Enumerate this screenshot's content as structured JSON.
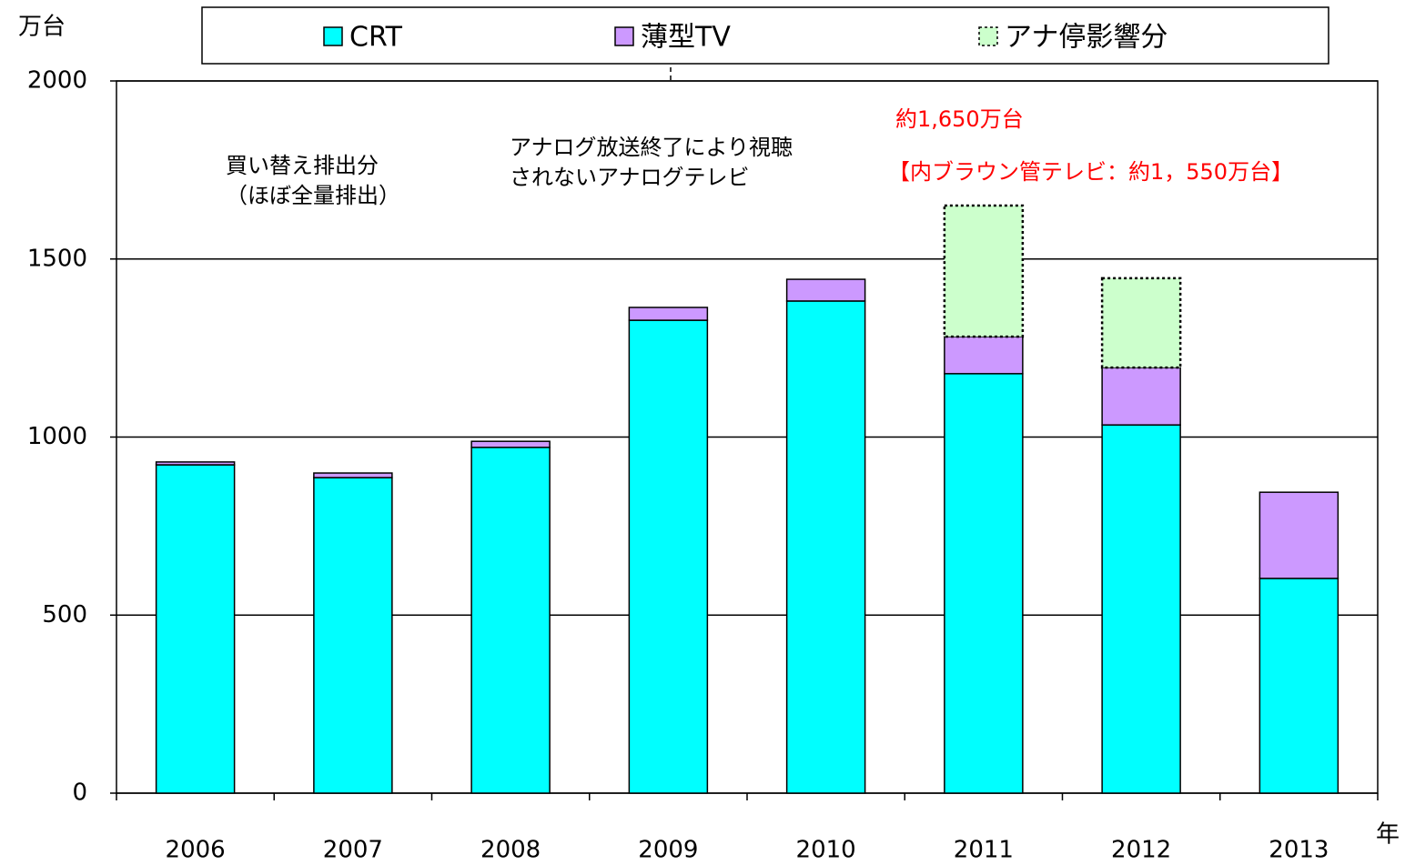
{
  "chart_data": {
    "type": "bar",
    "stacked": true,
    "y_axis_label": "万台",
    "x_axis_label": "年",
    "categories": [
      "2006",
      "2007",
      "2008",
      "2009",
      "2010",
      "2011",
      "2012",
      "2013"
    ],
    "series": [
      {
        "name": "CRT",
        "color": "#00ffff",
        "values": [
          922,
          886,
          971,
          1328,
          1382,
          1178,
          1034,
          603
        ]
      },
      {
        "name": "薄型TV",
        "color": "#cc99ff",
        "values": [
          8,
          13,
          17,
          36,
          61,
          104,
          161,
          242
        ]
      },
      {
        "name": "アナ停影響分",
        "color": "#ccffcc",
        "style": "dotted",
        "values": [
          null,
          null,
          null,
          null,
          null,
          368,
          251,
          null
        ]
      }
    ],
    "ylim": [
      0,
      2000
    ],
    "yticks": [
      0,
      500,
      1000,
      1500,
      2000
    ],
    "grid": true,
    "legend": "top",
    "annotations": [
      {
        "text": "買い替え排出分"
      },
      {
        "text": "（ほぼ全量排出）"
      },
      {
        "text": "アナログ放送終了により視聴"
      },
      {
        "text": "されないアナログテレビ"
      },
      {
        "text": "約1,650万台",
        "color": "#ff0000"
      },
      {
        "text": "【内ブラウン管テレビ：約1，550万台】",
        "color": "#ff0000"
      }
    ]
  }
}
